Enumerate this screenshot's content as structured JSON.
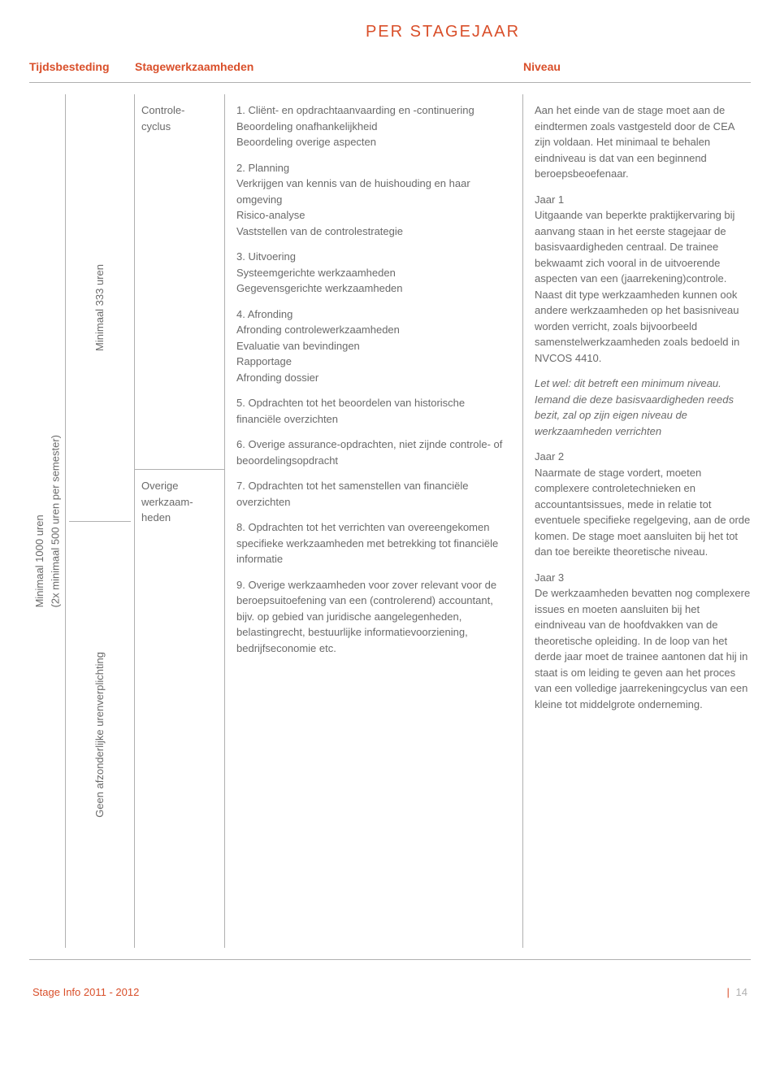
{
  "colors": {
    "accent": "#d94f2a",
    "text": "#6a6a6a",
    "rule": "#b0b0b0",
    "background": "#ffffff"
  },
  "supertitle": "PER STAGEJAAR",
  "headers": {
    "tijdsbesteding": "Tijdsbesteding",
    "stagewerkzaamheden": "Stagewerkzaamheden",
    "niveau": "Niveau"
  },
  "tijd": {
    "col1_line1": "Minimaal 1000 uren",
    "col1_line2": "(2x minimaal 500 uren per semester)",
    "col2_top": "Minimaal 333 uren",
    "col2_bot": "Geen afzonderlijke urenverplichting"
  },
  "stage": {
    "cat_top": "Controle-\ncyclus",
    "cat_bot": "Overige\nwerkzaam-\nheden"
  },
  "stagewerk": {
    "p1": "1. Cliënt- en opdrachtaanvaarding en -continuering\nBeoordeling onafhankelijkheid\nBeoordeling overige aspecten",
    "p2": "2. Planning\nVerkrijgen van kennis van de huishouding en haar omgeving\nRisico-analyse\nVaststellen van de controlestrategie",
    "p3": "3. Uitvoering\nSysteemgerichte werkzaamheden\nGegevensgerichte werkzaamheden",
    "p4": "4. Afronding\nAfronding controlewerkzaamheden\nEvaluatie van bevindingen\nRapportage\nAfronding dossier",
    "p5": "5. Opdrachten tot het beoordelen van historische financiële overzichten",
    "p6": "6. Overige assurance-opdrachten, niet zijnde controle- of beoordelingsopdracht",
    "p7": "7. Opdrachten tot het samenstellen van financiële overzichten",
    "p8": "8. Opdrachten tot het verrichten van overeengekomen specifieke werkzaamheden met betrekking tot financiële informatie",
    "p9": "9. Overige werkzaamheden voor zover relevant voor de beroepsuitoefening van een (controlerend) accountant, bijv. op gebied van juridische aangelegenheden, belastingrecht, bestuurlijke informatievoorziening, bedrijfseconomie etc."
  },
  "niveau": {
    "intro": "Aan het einde van de stage moet aan de eindtermen zoals vastgesteld door de CEA zijn voldaan. Het minimaal te behalen eindniveau is dat van een beginnend beroepsbeoefenaar.",
    "jaar1_title": "Jaar 1",
    "jaar1_body": "Uitgaande van beperkte praktijkervaring bij aanvang staan in het eerste stagejaar de basisvaardigheden centraal. De trainee bekwaamt zich vooral in de uitvoerende aspecten van een (jaarrekening)controle. Naast dit type werkzaamheden kunnen ook andere werkzaamheden op het basisniveau worden verricht, zoals bijvoorbeeld samenstelwerkzaamheden zoals bedoeld in NVCOS 4410.",
    "jaar1_note": "Let wel: dit betreft een minimum niveau. Iemand die deze basisvaardigheden reeds bezit, zal op zijn eigen niveau de werkzaamheden verrichten",
    "jaar2_title": "Jaar 2",
    "jaar2_body": "Naarmate de stage vordert, moeten complexere controletechnieken en accountantsissues, mede in relatie tot eventuele specifieke regelgeving, aan de orde komen. De stage moet aansluiten bij het tot dan toe bereikte theoretische niveau.",
    "jaar3_title": "Jaar 3",
    "jaar3_body": "De werkzaamheden bevatten nog complexere issues en moeten aansluiten bij het eindniveau van de hoofdvakken van de theoretische opleiding. In de loop van het derde jaar moet de trainee aantonen dat hij in staat is om leiding te geven aan het proces van een volledige jaarrekeningcyclus van een kleine tot middelgrote onderneming."
  },
  "footer": {
    "left": "Stage Info 2011 - 2012",
    "page": "14"
  }
}
